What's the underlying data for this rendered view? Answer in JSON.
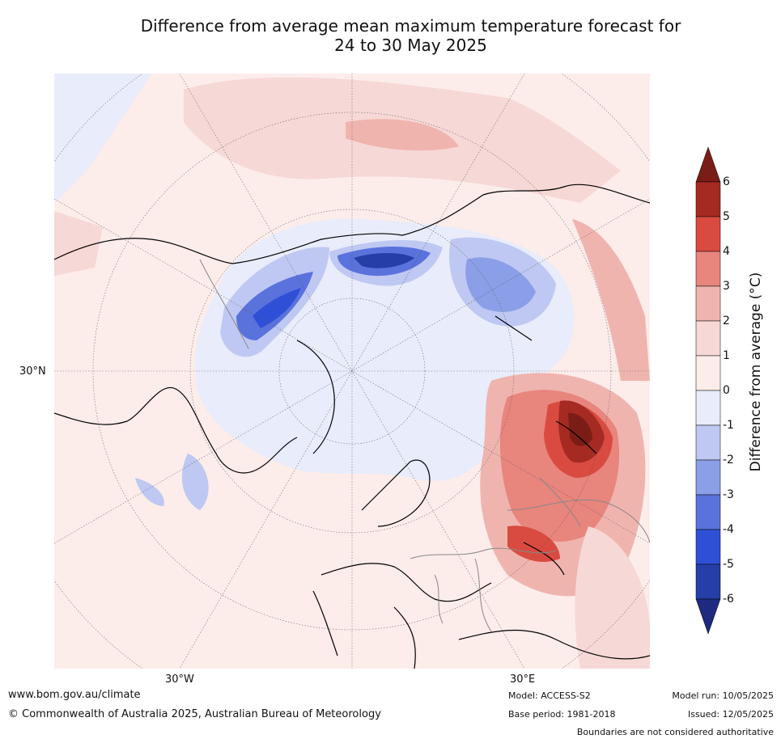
{
  "title_line1": "Difference from average mean maximum temperature forecast for",
  "title_line2": "24 to 30 May 2025",
  "map": {
    "lat_label": "30°N",
    "lon_label_w": "30°W",
    "lon_label_e": "30°E"
  },
  "colorbar": {
    "label": "Difference from average (°C)",
    "ticks": [
      "6",
      "5",
      "4",
      "3",
      "2",
      "1",
      "0",
      "-1",
      "-2",
      "-3",
      "-4",
      "-5",
      "-6"
    ],
    "colors": {
      "over": "#7a1d16",
      "b5_6": "#a52a22",
      "b4_5": "#d94b40",
      "b3_4": "#e8857d",
      "b2_3": "#f0b4ae",
      "b1_2": "#f6d8d6",
      "b0_1": "#fcecea",
      "bm1_0": "#e8ecfb",
      "bm2_m1": "#bfc8f2",
      "bm3_m2": "#8b9fe8",
      "bm4_m3": "#5a72dc",
      "bm5_m4": "#2f50d6",
      "bm6_m5": "#263ea8",
      "under": "#1d2a80"
    }
  },
  "footer": {
    "url": "www.bom.gov.au/climate",
    "copyright": "© Commonwealth of Australia 2025, Australian Bureau of Meteorology",
    "model": "Model: ACCESS-S2",
    "base_period": "Base period: 1981-2018",
    "model_run": "Model run: 10/05/2025",
    "issued": "Issued: 12/05/2025",
    "disclaimer": "Boundaries are not considered authoritative"
  }
}
